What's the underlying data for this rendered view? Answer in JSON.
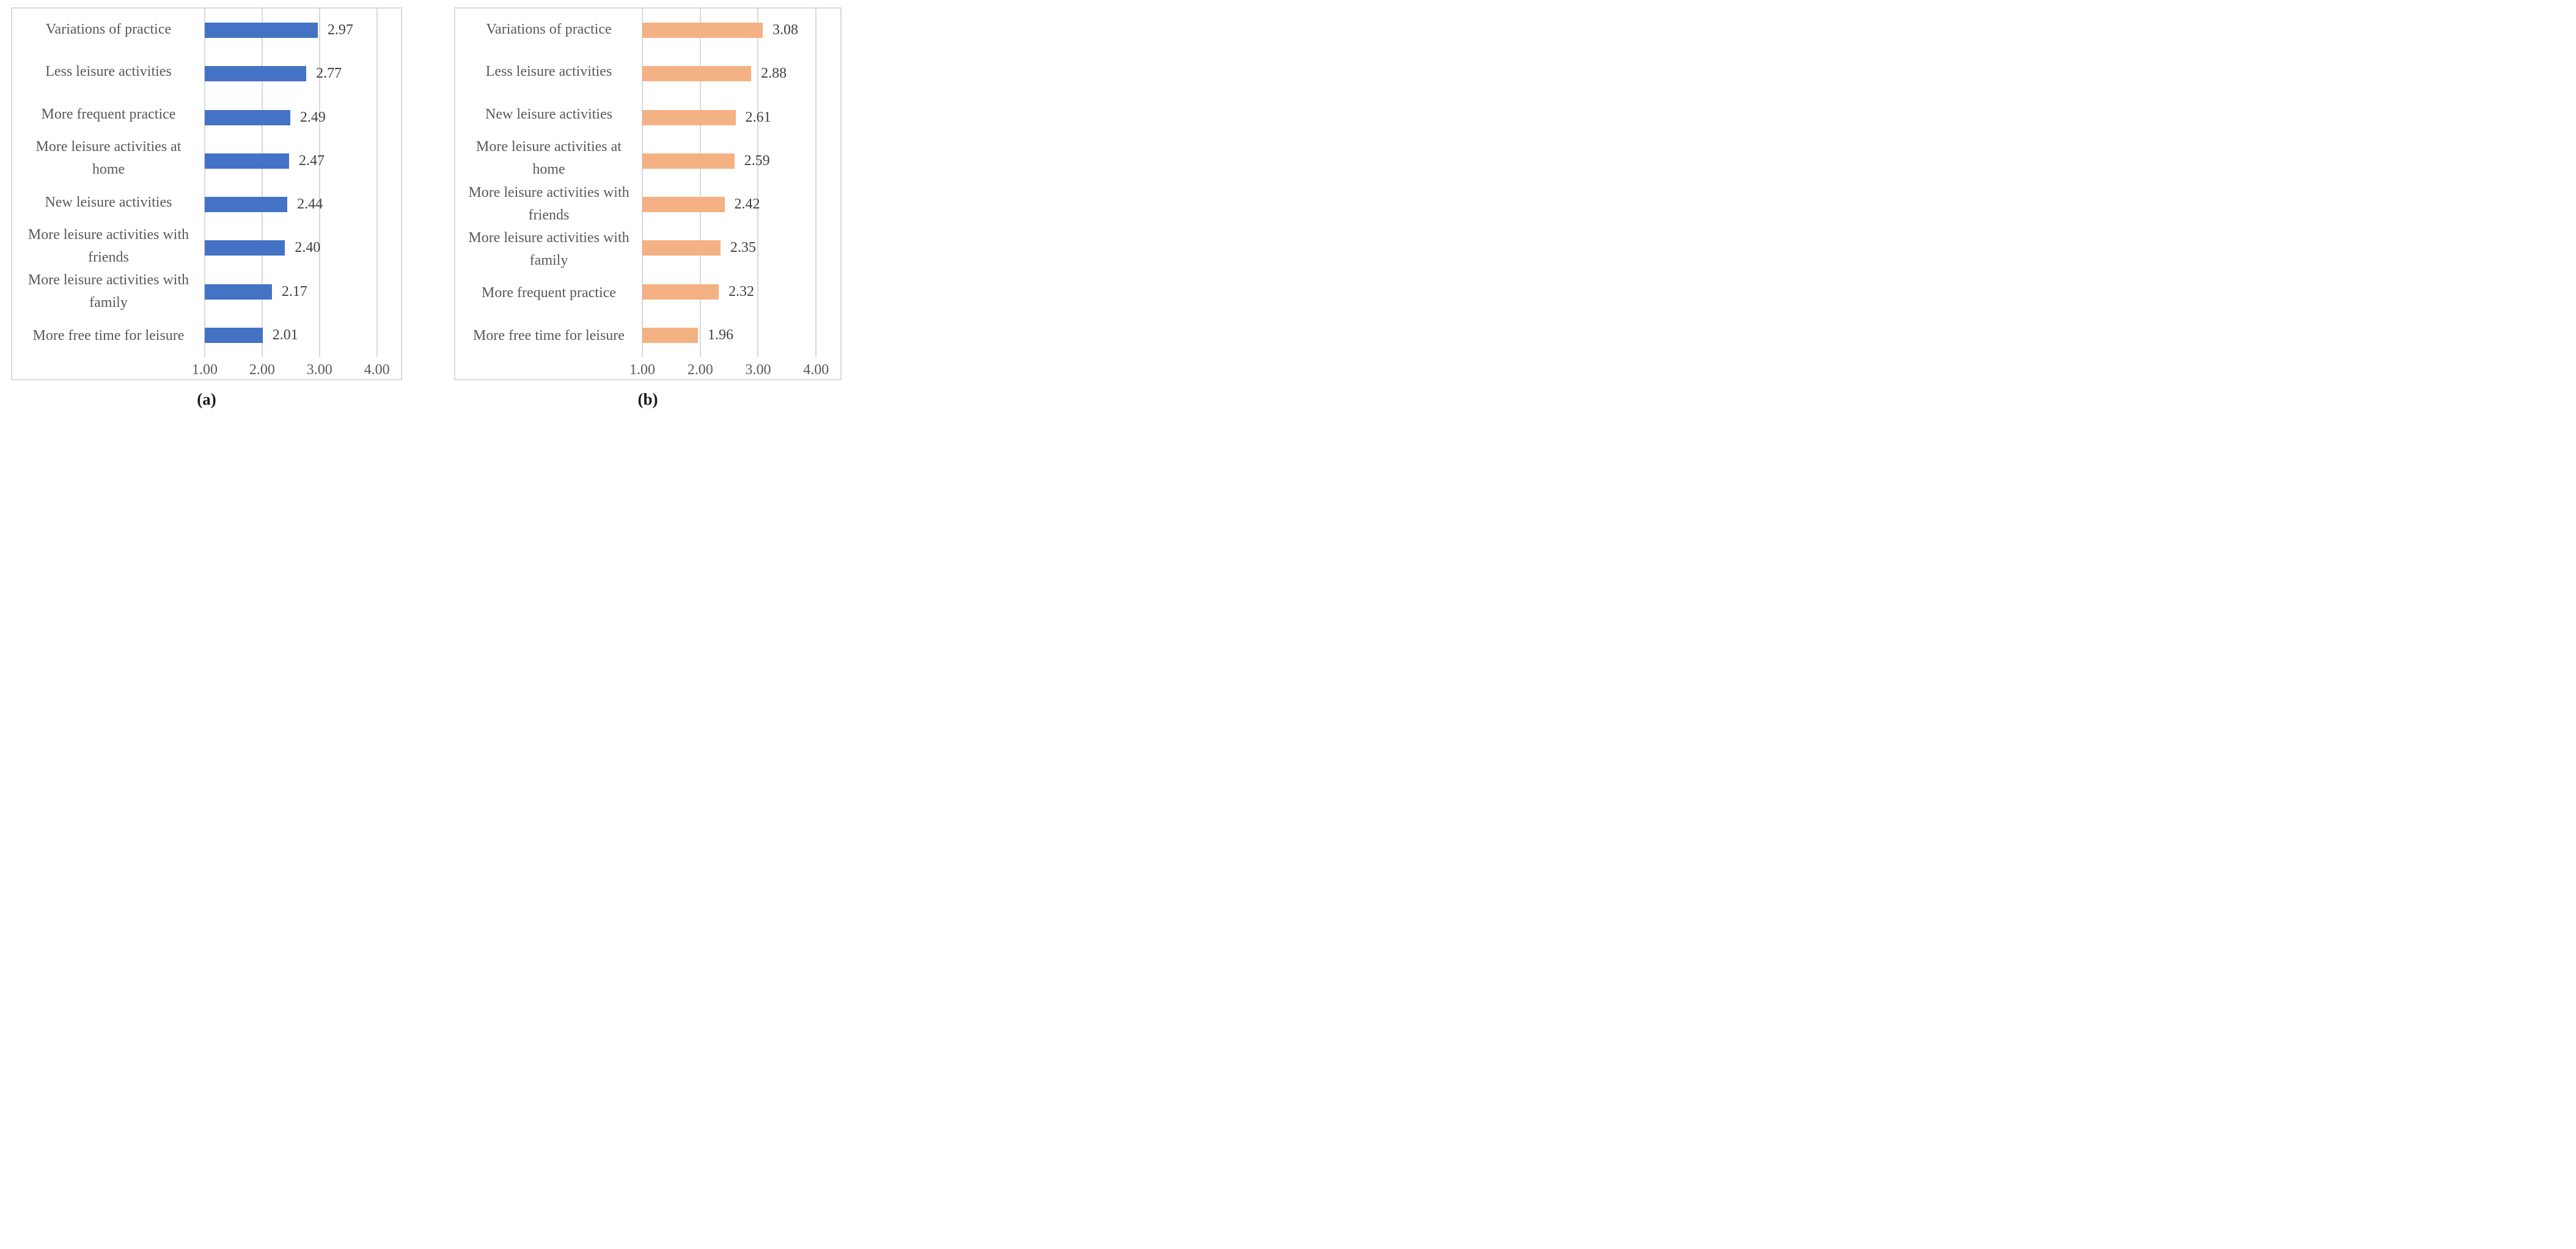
{
  "figure": {
    "description_colors": {
      "bar_blue": "#4472C4",
      "bar_orange": "#F4B183",
      "gridline": "#D9D9D9",
      "panel_border": "#D9D9D9",
      "category_text": "#595959",
      "value_text": "#3F3F3F"
    }
  },
  "chart_data": [
    {
      "type": "bar",
      "orientation": "horizontal",
      "caption": "(a)",
      "bar_color": "#4472C4",
      "categories": [
        "Variations of practice",
        "Less leisure activities",
        "More frequent practice",
        "More leisure activities at home",
        "New leisure activities",
        "More leisure activities with friends",
        "More leisure activities with family",
        "More free time for leisure"
      ],
      "values": [
        2.97,
        2.77,
        2.49,
        2.47,
        2.44,
        2.4,
        2.17,
        2.01
      ],
      "value_labels": [
        "2.97",
        "2.77",
        "2.49",
        "2.47",
        "2.44",
        "2.40",
        "2.17",
        "2.01"
      ],
      "xticks": [
        1,
        2,
        3,
        4
      ],
      "xtick_labels": [
        "1.00",
        "2.00",
        "3.00",
        "4.00"
      ],
      "xlim": [
        1.0,
        4.42
      ],
      "value_axis_start": 1.0,
      "grid": true,
      "legend": "none",
      "title": "",
      "xlabel": "",
      "ylabel": ""
    },
    {
      "type": "bar",
      "orientation": "horizontal",
      "caption": "(b)",
      "bar_color": "#F4B183",
      "categories": [
        "Variations of practice",
        "Less leisure activities",
        "New leisure activities",
        "More leisure activities at home",
        "More leisure activities with friends",
        "More leisure activities with family",
        "More frequent practice",
        "More free time for leisure"
      ],
      "values": [
        3.08,
        2.88,
        2.61,
        2.59,
        2.42,
        2.35,
        2.32,
        1.96
      ],
      "value_labels": [
        "3.08",
        "2.88",
        "2.61",
        "2.59",
        "2.42",
        "2.35",
        "2.32",
        "1.96"
      ],
      "xticks": [
        1,
        2,
        3,
        4
      ],
      "xtick_labels": [
        "1.00",
        "2.00",
        "3.00",
        "4.00"
      ],
      "xlim": [
        1.0,
        4.42
      ],
      "value_axis_start": 1.0,
      "grid": true,
      "legend": "none",
      "title": "",
      "xlabel": "",
      "ylabel": ""
    }
  ]
}
